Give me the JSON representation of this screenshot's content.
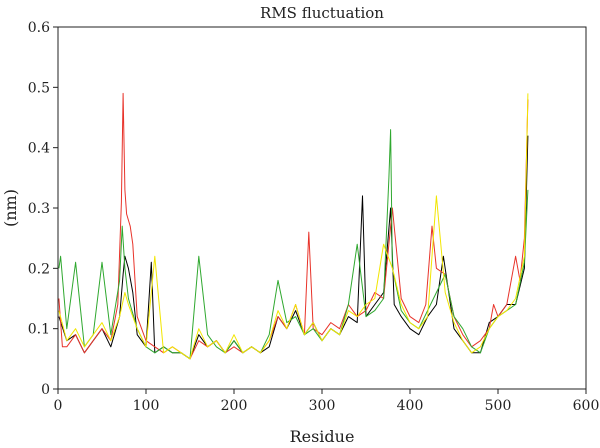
{
  "chart_data": {
    "type": "line",
    "title": "RMS fluctuation",
    "xlabel": "Residue",
    "ylabel": "(nm)",
    "xlim": [
      0,
      600
    ],
    "ylim": [
      0,
      0.6
    ],
    "xticks": [
      "0",
      "100",
      "200",
      "300",
      "400",
      "500",
      "600"
    ],
    "yticks": [
      "0",
      "0.1",
      "0.2",
      "0.3",
      "0.4",
      "0.5",
      "0.6"
    ],
    "grid": false,
    "legend": "none",
    "series": [
      {
        "color": "#000000",
        "x": [
          1,
          10,
          20,
          30,
          40,
          50,
          60,
          70,
          74,
          76,
          80,
          85,
          90,
          100,
          106,
          110,
          120,
          130,
          140,
          150,
          160,
          170,
          180,
          190,
          200,
          210,
          220,
          230,
          240,
          250,
          260,
          270,
          280,
          290,
          300,
          310,
          320,
          330,
          340,
          346,
          350,
          360,
          370,
          378,
          382,
          390,
          400,
          410,
          420,
          430,
          438,
          445,
          450,
          460,
          470,
          480,
          490,
          500,
          510,
          520,
          530,
          534
        ],
        "y": [
          0.12,
          0.08,
          0.09,
          0.06,
          0.08,
          0.1,
          0.07,
          0.12,
          0.19,
          0.22,
          0.2,
          0.16,
          0.09,
          0.07,
          0.21,
          0.06,
          0.07,
          0.06,
          0.06,
          0.05,
          0.09,
          0.07,
          0.08,
          0.06,
          0.08,
          0.06,
          0.07,
          0.06,
          0.07,
          0.12,
          0.1,
          0.13,
          0.09,
          0.11,
          0.08,
          0.1,
          0.09,
          0.12,
          0.11,
          0.32,
          0.12,
          0.14,
          0.16,
          0.3,
          0.14,
          0.12,
          0.1,
          0.09,
          0.12,
          0.14,
          0.22,
          0.15,
          0.1,
          0.08,
          0.06,
          0.06,
          0.11,
          0.12,
          0.14,
          0.14,
          0.2,
          0.42
        ]
      },
      {
        "color": "#e8332a",
        "x": [
          1,
          5,
          10,
          20,
          30,
          40,
          50,
          60,
          68,
          72,
          74,
          76,
          78,
          80,
          82,
          85,
          90,
          100,
          110,
          120,
          130,
          140,
          150,
          160,
          170,
          180,
          190,
          200,
          210,
          220,
          230,
          240,
          250,
          260,
          270,
          280,
          285,
          290,
          300,
          310,
          320,
          330,
          340,
          350,
          360,
          370,
          380,
          390,
          400,
          410,
          418,
          425,
          430,
          440,
          450,
          460,
          470,
          480,
          490,
          495,
          500,
          510,
          520,
          525,
          530,
          534
        ],
        "y": [
          0.15,
          0.07,
          0.07,
          0.09,
          0.06,
          0.08,
          0.1,
          0.08,
          0.14,
          0.31,
          0.49,
          0.33,
          0.29,
          0.28,
          0.27,
          0.24,
          0.12,
          0.08,
          0.07,
          0.06,
          0.07,
          0.06,
          0.05,
          0.08,
          0.07,
          0.08,
          0.06,
          0.07,
          0.06,
          0.07,
          0.06,
          0.08,
          0.12,
          0.1,
          0.14,
          0.09,
          0.26,
          0.1,
          0.09,
          0.11,
          0.1,
          0.14,
          0.12,
          0.13,
          0.16,
          0.15,
          0.3,
          0.15,
          0.12,
          0.11,
          0.14,
          0.27,
          0.2,
          0.19,
          0.12,
          0.09,
          0.07,
          0.08,
          0.1,
          0.14,
          0.12,
          0.14,
          0.22,
          0.18,
          0.25,
          0.48
        ]
      },
      {
        "color": "#2fa82f",
        "x": [
          1,
          3,
          10,
          20,
          30,
          40,
          50,
          60,
          70,
          73,
          76,
          80,
          90,
          100,
          110,
          120,
          130,
          140,
          150,
          160,
          170,
          180,
          190,
          200,
          210,
          220,
          230,
          240,
          250,
          260,
          270,
          280,
          290,
          300,
          310,
          320,
          330,
          340,
          350,
          360,
          370,
          376,
          378,
          380,
          390,
          400,
          410,
          420,
          430,
          440,
          450,
          460,
          470,
          480,
          490,
          500,
          510,
          520,
          530,
          534
        ],
        "y": [
          0.2,
          0.22,
          0.1,
          0.21,
          0.07,
          0.09,
          0.21,
          0.09,
          0.18,
          0.27,
          0.2,
          0.15,
          0.1,
          0.07,
          0.06,
          0.07,
          0.06,
          0.06,
          0.05,
          0.22,
          0.09,
          0.07,
          0.06,
          0.08,
          0.06,
          0.07,
          0.06,
          0.09,
          0.18,
          0.11,
          0.12,
          0.09,
          0.1,
          0.08,
          0.1,
          0.09,
          0.14,
          0.24,
          0.12,
          0.13,
          0.15,
          0.35,
          0.43,
          0.2,
          0.13,
          0.11,
          0.1,
          0.13,
          0.16,
          0.19,
          0.12,
          0.1,
          0.07,
          0.06,
          0.1,
          0.12,
          0.13,
          0.14,
          0.21,
          0.33
        ]
      },
      {
        "color": "#f2e600",
        "x": [
          1,
          10,
          20,
          30,
          40,
          50,
          60,
          70,
          76,
          80,
          90,
          100,
          110,
          120,
          130,
          140,
          150,
          160,
          170,
          180,
          190,
          200,
          210,
          220,
          230,
          240,
          250,
          260,
          270,
          280,
          290,
          300,
          310,
          320,
          330,
          340,
          350,
          360,
          370,
          380,
          390,
          400,
          410,
          420,
          430,
          440,
          450,
          460,
          470,
          480,
          490,
          500,
          510,
          520,
          530,
          534
        ],
        "y": [
          0.13,
          0.08,
          0.1,
          0.07,
          0.09,
          0.11,
          0.08,
          0.12,
          0.16,
          0.14,
          0.1,
          0.07,
          0.22,
          0.06,
          0.07,
          0.06,
          0.05,
          0.1,
          0.07,
          0.08,
          0.06,
          0.09,
          0.06,
          0.07,
          0.06,
          0.08,
          0.13,
          0.1,
          0.14,
          0.09,
          0.11,
          0.08,
          0.1,
          0.09,
          0.13,
          0.12,
          0.14,
          0.15,
          0.24,
          0.2,
          0.14,
          0.11,
          0.1,
          0.12,
          0.32,
          0.16,
          0.11,
          0.08,
          0.06,
          0.07,
          0.1,
          0.12,
          0.13,
          0.15,
          0.22,
          0.49
        ]
      }
    ]
  }
}
